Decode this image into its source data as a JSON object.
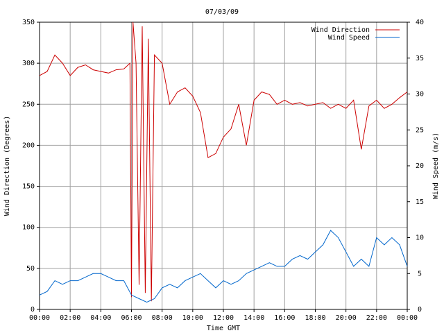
{
  "chart_data": {
    "type": "line",
    "title": "07/03/09",
    "xlabel": "Time GMT",
    "ylabel_left": "Wind Direction (Degrees)",
    "ylabel_right": "Wind Speed (m/s)",
    "x_ticks": [
      "00:00",
      "02:00",
      "04:00",
      "06:00",
      "08:00",
      "10:00",
      "12:00",
      "14:00",
      "16:00",
      "18:00",
      "20:00",
      "22:00",
      "00:00"
    ],
    "x_range_hours": [
      0,
      24
    ],
    "ylim_left": [
      0,
      350
    ],
    "yticks_left": [
      0,
      50,
      100,
      150,
      200,
      250,
      300,
      350
    ],
    "ylim_right": [
      0,
      40
    ],
    "yticks_right": [
      0,
      5,
      10,
      15,
      20,
      25,
      30,
      35,
      40
    ],
    "grid": true,
    "legend_position": "top-right",
    "series": [
      {
        "name": "Wind Direction",
        "axis": "left",
        "color": "#cc0000",
        "x": [
          0,
          0.5,
          1,
          1.5,
          2,
          2.5,
          3,
          3.5,
          4,
          4.5,
          5,
          5.5,
          5.9,
          6.0,
          6.1,
          6.3,
          6.5,
          6.7,
          6.9,
          7.1,
          7.3,
          7.5,
          8,
          8.5,
          9,
          9.5,
          10,
          10.5,
          11,
          11.5,
          12,
          12.5,
          13,
          13.5,
          14,
          14.5,
          15,
          15.5,
          16,
          16.5,
          17,
          17.5,
          18,
          18.5,
          19,
          19.5,
          20,
          20.5,
          21,
          21.5,
          22,
          22.5,
          23,
          23.5,
          24
        ],
        "values": [
          285,
          290,
          310,
          300,
          285,
          295,
          298,
          292,
          290,
          288,
          292,
          293,
          300,
          15,
          350,
          300,
          30,
          345,
          20,
          330,
          10,
          310,
          300,
          250,
          265,
          270,
          260,
          240,
          185,
          190,
          210,
          220,
          250,
          200,
          255,
          265,
          262,
          250,
          255,
          250,
          252,
          248,
          250,
          252,
          245,
          250,
          245,
          255,
          195,
          248,
          255,
          245,
          250,
          258,
          265
        ]
      },
      {
        "name": "Wind Speed",
        "axis": "right",
        "color": "#0066cc",
        "x": [
          0,
          0.5,
          1,
          1.5,
          2,
          2.5,
          3,
          3.5,
          4,
          4.5,
          5,
          5.5,
          6,
          6.5,
          7,
          7.5,
          8,
          8.5,
          9,
          9.5,
          10,
          10.5,
          11,
          11.5,
          12,
          12.5,
          13,
          13.5,
          14,
          14.5,
          15,
          15.5,
          16,
          16.5,
          17,
          17.5,
          18,
          18.5,
          19,
          19.5,
          20,
          20.5,
          21,
          21.5,
          22,
          22.5,
          23,
          23.5,
          24
        ],
        "values": [
          2,
          2.5,
          4,
          3.5,
          4,
          4,
          4.5,
          5,
          5,
          4.5,
          4,
          4,
          2,
          1.5,
          1,
          1.5,
          3,
          3.5,
          3,
          4,
          4.5,
          5,
          4,
          3,
          4,
          3.5,
          4,
          5,
          5.5,
          6,
          6.5,
          6,
          6,
          7,
          7.5,
          7,
          8,
          9,
          11,
          10,
          8,
          6,
          7,
          6,
          10,
          9,
          10,
          9,
          6
        ]
      }
    ]
  },
  "legend": {
    "direction_label": "Wind Direction",
    "speed_label": "Wind Speed"
  }
}
